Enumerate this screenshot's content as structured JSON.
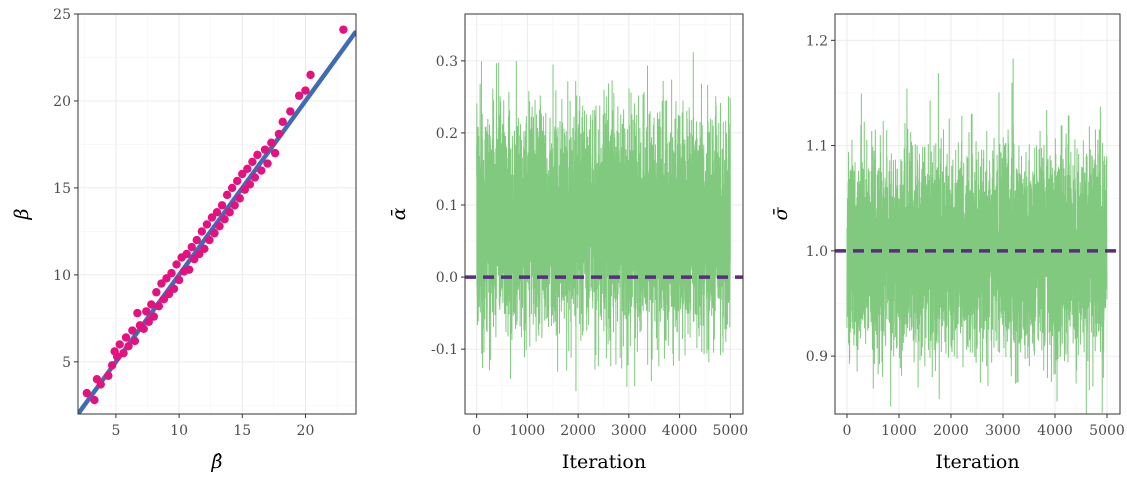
{
  "colors": {
    "points": "#e5117e",
    "fit_line": "#3f6db3",
    "trace": "#80c97e",
    "reference": "#5a2d81"
  },
  "chart_data": [
    {
      "type": "scatter",
      "xlabel": "β̂",
      "ylabel": "β",
      "xlim": [
        2,
        24
      ],
      "ylim": [
        2,
        25
      ],
      "x_ticks": [
        5,
        10,
        15,
        20
      ],
      "y_ticks": [
        5,
        10,
        15,
        20,
        25
      ],
      "grid": true,
      "reference_line": {
        "intercept": 0,
        "slope": 1
      },
      "points": [
        [
          2.7,
          3.2
        ],
        [
          3.3,
          2.8
        ],
        [
          3.5,
          4.0
        ],
        [
          3.8,
          3.7
        ],
        [
          4.4,
          4.2
        ],
        [
          4.7,
          4.8
        ],
        [
          4.9,
          5.6
        ],
        [
          5.1,
          5.3
        ],
        [
          5.3,
          6.0
        ],
        [
          5.6,
          5.5
        ],
        [
          5.8,
          6.4
        ],
        [
          6.0,
          5.9
        ],
        [
          6.3,
          6.8
        ],
        [
          6.5,
          6.2
        ],
        [
          6.7,
          7.8
        ],
        [
          6.9,
          7.1
        ],
        [
          7.2,
          6.9
        ],
        [
          7.4,
          7.9
        ],
        [
          7.6,
          7.3
        ],
        [
          7.8,
          8.3
        ],
        [
          8.0,
          7.6
        ],
        [
          8.2,
          9.0
        ],
        [
          8.4,
          8.2
        ],
        [
          8.6,
          9.5
        ],
        [
          8.8,
          8.6
        ],
        [
          9.0,
          9.8
        ],
        [
          9.2,
          8.9
        ],
        [
          9.4,
          10.1
        ],
        [
          9.6,
          9.2
        ],
        [
          9.8,
          10.6
        ],
        [
          10.0,
          9.7
        ],
        [
          10.2,
          11.0
        ],
        [
          10.4,
          10.2
        ],
        [
          10.6,
          11.2
        ],
        [
          10.8,
          10.3
        ],
        [
          11.0,
          11.6
        ],
        [
          11.2,
          10.9
        ],
        [
          11.4,
          12.0
        ],
        [
          11.6,
          11.2
        ],
        [
          11.8,
          12.5
        ],
        [
          12.0,
          11.5
        ],
        [
          12.2,
          12.9
        ],
        [
          12.4,
          12.0
        ],
        [
          12.6,
          13.3
        ],
        [
          12.8,
          12.4
        ],
        [
          13.0,
          13.6
        ],
        [
          13.2,
          12.8
        ],
        [
          13.4,
          14.0
        ],
        [
          13.6,
          13.2
        ],
        [
          13.8,
          14.6
        ],
        [
          14.0,
          13.6
        ],
        [
          14.2,
          15.0
        ],
        [
          14.4,
          14.0
        ],
        [
          14.6,
          15.4
        ],
        [
          14.8,
          14.4
        ],
        [
          15.0,
          15.8
        ],
        [
          15.2,
          14.9
        ],
        [
          15.4,
          16.1
        ],
        [
          15.6,
          15.2
        ],
        [
          15.8,
          16.5
        ],
        [
          16.0,
          15.6
        ],
        [
          16.2,
          16.9
        ],
        [
          16.5,
          16.0
        ],
        [
          16.8,
          17.2
        ],
        [
          17.0,
          16.4
        ],
        [
          17.3,
          17.6
        ],
        [
          17.6,
          17.0
        ],
        [
          17.9,
          18.1
        ],
        [
          18.2,
          18.8
        ],
        [
          18.8,
          19.4
        ],
        [
          19.5,
          20.3
        ],
        [
          20.0,
          20.6
        ],
        [
          20.4,
          21.5
        ],
        [
          23.0,
          24.1
        ]
      ]
    },
    {
      "type": "line",
      "xlabel": "Iteration",
      "ylabel": "ᾱ",
      "xlim": [
        -230,
        5250
      ],
      "ylim": [
        -0.19,
        0.365
      ],
      "x_ticks": [
        0,
        1000,
        2000,
        3000,
        4000,
        5000
      ],
      "y_ticks": [
        -0.1,
        0.0,
        0.1,
        0.2,
        0.3
      ],
      "y_tick_labels": [
        "-0.1",
        "0.0",
        "0.1",
        "0.2",
        "0.3"
      ],
      "grid": true,
      "reference_value": 0.0,
      "trace": {
        "n": 5000,
        "mean": 0.075,
        "sd": 0.072,
        "seed": 7
      }
    },
    {
      "type": "line",
      "xlabel": "Iteration",
      "ylabel": "σ̄",
      "xlim": [
        -230,
        5250
      ],
      "ylim": [
        0.845,
        1.225
      ],
      "x_ticks": [
        0,
        1000,
        2000,
        3000,
        4000,
        5000
      ],
      "y_ticks": [
        0.9,
        1.0,
        1.1,
        1.2
      ],
      "y_tick_labels": [
        "0.9",
        "1.0",
        "1.1",
        "1.2"
      ],
      "grid": true,
      "reference_value": 1.0,
      "trace": {
        "n": 5000,
        "mean": 1.0,
        "sd": 0.045,
        "seed": 13
      }
    }
  ]
}
